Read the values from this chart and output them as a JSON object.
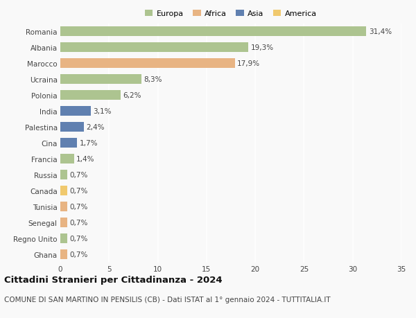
{
  "countries": [
    "Romania",
    "Albania",
    "Marocco",
    "Ucraina",
    "Polonia",
    "India",
    "Palestina",
    "Cina",
    "Francia",
    "Russia",
    "Canada",
    "Tunisia",
    "Senegal",
    "Regno Unito",
    "Ghana"
  ],
  "values": [
    31.4,
    19.3,
    17.9,
    8.3,
    6.2,
    3.1,
    2.4,
    1.7,
    1.4,
    0.7,
    0.7,
    0.7,
    0.7,
    0.7,
    0.7
  ],
  "labels": [
    "31,4%",
    "19,3%",
    "17,9%",
    "8,3%",
    "6,2%",
    "3,1%",
    "2,4%",
    "1,7%",
    "1,4%",
    "0,7%",
    "0,7%",
    "0,7%",
    "0,7%",
    "0,7%",
    "0,7%"
  ],
  "continents": [
    "Europa",
    "Europa",
    "Africa",
    "Europa",
    "Europa",
    "Asia",
    "Asia",
    "Asia",
    "Europa",
    "Europa",
    "America",
    "Africa",
    "Africa",
    "Europa",
    "Africa"
  ],
  "colors": {
    "Europa": "#adc490",
    "Africa": "#e8b483",
    "Asia": "#6080b0",
    "America": "#f0c96e"
  },
  "legend_order": [
    "Europa",
    "Africa",
    "Asia",
    "America"
  ],
  "xlim": [
    0,
    35
  ],
  "xticks": [
    0,
    5,
    10,
    15,
    20,
    25,
    30,
    35
  ],
  "title": "Cittadini Stranieri per Cittadinanza - 2024",
  "subtitle": "COMUNE DI SAN MARTINO IN PENSILIS (CB) - Dati ISTAT al 1° gennaio 2024 - TUTTITALIA.IT",
  "background_color": "#f9f9f9",
  "grid_color": "#ffffff",
  "bar_height": 0.6,
  "label_fontsize": 7.5,
  "tick_fontsize": 7.5,
  "title_fontsize": 9.5,
  "subtitle_fontsize": 7.5
}
